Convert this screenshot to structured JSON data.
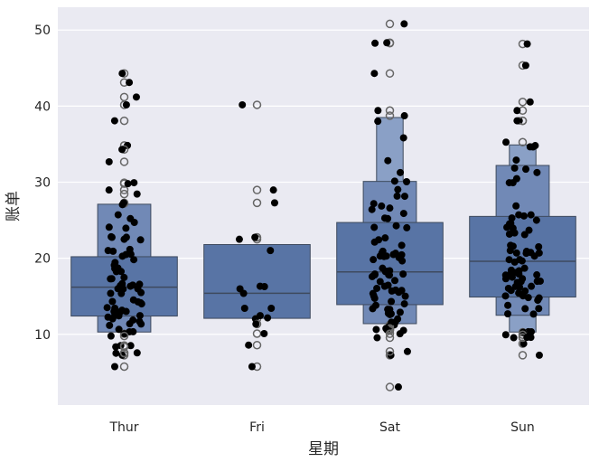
{
  "chart_data": {
    "type": "boxen+strip",
    "title": "",
    "xlabel": "星期",
    "ylabel": "账单",
    "categories": [
      "Thur",
      "Fri",
      "Sat",
      "Sun"
    ],
    "yticks": [
      10,
      20,
      30,
      40,
      50
    ],
    "ylim": [
      0.7,
      53
    ],
    "grid": true,
    "colors": {
      "background": "#eaeaf2",
      "grid": "#ffffff",
      "box_levels": [
        "#5874a5",
        "#7189b6",
        "#8aa0c6"
      ],
      "edge": "#3e4a5e",
      "points": "#000000",
      "outliers": "#666666"
    },
    "boxes": [
      {
        "category": "Thur",
        "median": 16.2,
        "levels": [
          [
            12.4,
            20.2
          ],
          [
            10.3,
            27.1
          ]
        ]
      },
      {
        "category": "Fri",
        "median": 15.4,
        "levels": [
          [
            12.1,
            21.8
          ]
        ]
      },
      {
        "category": "Sat",
        "median": 18.2,
        "levels": [
          [
            13.9,
            24.7
          ],
          [
            11.4,
            30.1
          ],
          [
            11.4,
            38.5
          ]
        ]
      },
      {
        "category": "Sun",
        "median": 19.6,
        "levels": [
          [
            14.9,
            25.5
          ],
          [
            12.5,
            32.2
          ],
          [
            10.3,
            34.9
          ]
        ]
      }
    ],
    "points": {
      "Thur": [
        27.2,
        22.76,
        17.29,
        19.44,
        16.66,
        10.07,
        32.68,
        15.98,
        34.83,
        13.03,
        18.28,
        24.71,
        21.16,
        28.97,
        22.49,
        5.75,
        16.32,
        22.75,
        40.17,
        27.28,
        12.03,
        21.01,
        12.46,
        11.35,
        15.38,
        44.3,
        22.42,
        20.92,
        15.36,
        20.49,
        25.21,
        18.24,
        14.31,
        14.0,
        7.25,
        38.07,
        23.95,
        25.71,
        17.31,
        29.93,
        10.65,
        12.43,
        24.08,
        11.69,
        13.42,
        14.26,
        15.95,
        12.48,
        29.8,
        8.52,
        14.52,
        11.38,
        22.82,
        19.08,
        20.27,
        11.17,
        12.26,
        18.26,
        8.51,
        10.33,
        14.15,
        16.0,
        13.16,
        17.47,
        34.3,
        41.19,
        27.05,
        16.43,
        8.35,
        18.64,
        11.87,
        9.78,
        7.51,
        19.81,
        28.44,
        15.48,
        16.58,
        7.56,
        10.34,
        43.11,
        13.0,
        13.51,
        18.71,
        12.74,
        13.0,
        16.4,
        20.53,
        16.47,
        18.78
      ],
      "Fri": [
        28.97,
        22.49,
        5.75,
        16.32,
        22.75,
        40.17,
        27.28,
        12.03,
        21.01,
        12.46,
        11.35,
        15.38,
        12.16,
        13.42,
        8.58,
        15.98,
        13.42,
        16.27,
        10.09
      ],
      "Sat": [
        20.65,
        17.92,
        20.29,
        15.77,
        39.42,
        19.82,
        17.81,
        13.37,
        12.69,
        21.7,
        19.65,
        9.55,
        18.35,
        15.06,
        20.69,
        17.78,
        24.06,
        16.31,
        16.93,
        18.69,
        31.27,
        16.04,
        38.01,
        26.41,
        11.24,
        48.27,
        20.29,
        13.81,
        11.02,
        18.29,
        17.59,
        20.08,
        16.45,
        3.07,
        20.23,
        15.01,
        12.02,
        17.07,
        26.86,
        25.28,
        14.73,
        10.51,
        17.92,
        44.3,
        22.42,
        20.92,
        15.36,
        20.49,
        25.21,
        18.24,
        14.31,
        14.0,
        7.25,
        10.59,
        10.63,
        50.81,
        15.81,
        26.59,
        38.73,
        24.27,
        12.76,
        30.06,
        25.89,
        48.33,
        13.27,
        28.17,
        12.9,
        28.15,
        11.59,
        7.74,
        30.14,
        20.45,
        13.28,
        22.12,
        24.01,
        15.69,
        11.61,
        10.77,
        15.53,
        10.07,
        12.6,
        32.83,
        35.83,
        29.03,
        27.18,
        22.67,
        17.82
      ],
      "Sun": [
        16.99,
        10.34,
        21.01,
        23.68,
        24.59,
        25.29,
        8.77,
        26.88,
        15.04,
        14.78,
        10.27,
        35.26,
        15.42,
        18.43,
        14.83,
        21.58,
        10.33,
        16.29,
        16.97,
        20.65,
        17.92,
        20.29,
        15.77,
        39.42,
        19.82,
        17.81,
        13.37,
        12.69,
        21.7,
        19.65,
        9.55,
        18.35,
        15.06,
        20.69,
        17.78,
        24.06,
        16.31,
        16.93,
        18.69,
        31.27,
        16.04,
        38.07,
        23.95,
        25.71,
        17.31,
        29.93,
        9.6,
        34.81,
        9.94,
        25.56,
        19.49,
        38.07,
        23.95,
        25.71,
        17.31,
        29.93,
        48.17,
        25.0,
        13.39,
        16.49,
        21.5,
        12.66,
        16.21,
        13.81,
        17.51,
        24.52,
        20.76,
        31.71,
        7.25,
        31.85,
        16.82,
        32.9,
        17.89,
        14.48,
        9.6,
        34.63,
        34.65,
        23.33,
        45.35,
        23.17,
        40.55,
        20.69,
        20.9,
        30.46,
        18.15,
        23.1,
        15.69,
        19.81
      ]
    }
  }
}
